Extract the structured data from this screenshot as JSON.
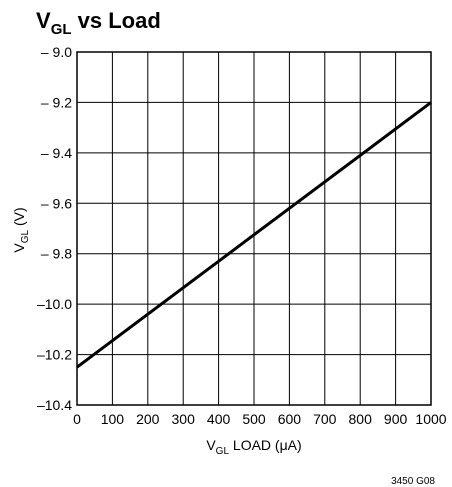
{
  "chart_data": {
    "type": "line",
    "title": {
      "main": "V",
      "sub": "GL",
      "rest": " vs Load"
    },
    "xlabel": {
      "main": "V",
      "sub": "GL",
      "rest": " LOAD (μA)"
    },
    "ylabel": {
      "main": "V",
      "sub": "GL",
      "rest": " (V)"
    },
    "xlim": [
      0,
      1000
    ],
    "ylim": [
      -10.4,
      -9.0
    ],
    "x_ticks": [
      0,
      100,
      200,
      300,
      400,
      500,
      600,
      700,
      800,
      900,
      1000
    ],
    "x_tick_labels": [
      "0",
      "100",
      "200",
      "300",
      "400",
      "500",
      "600",
      "700",
      "800",
      "900",
      "1000"
    ],
    "y_ticks": [
      -9.0,
      -9.2,
      -9.4,
      -9.6,
      -9.8,
      -10.0,
      -10.2,
      -10.4
    ],
    "y_tick_labels": [
      "– 9.0",
      "– 9.2",
      "– 9.4",
      "– 9.6",
      "– 9.8",
      "–10.0",
      "–10.2",
      "–10.4"
    ],
    "grid": true,
    "series": [
      {
        "x": [
          0,
          1000
        ],
        "y": [
          -10.25,
          -9.2
        ]
      }
    ],
    "line_color": "#000000",
    "footnote": "3450 G08"
  }
}
